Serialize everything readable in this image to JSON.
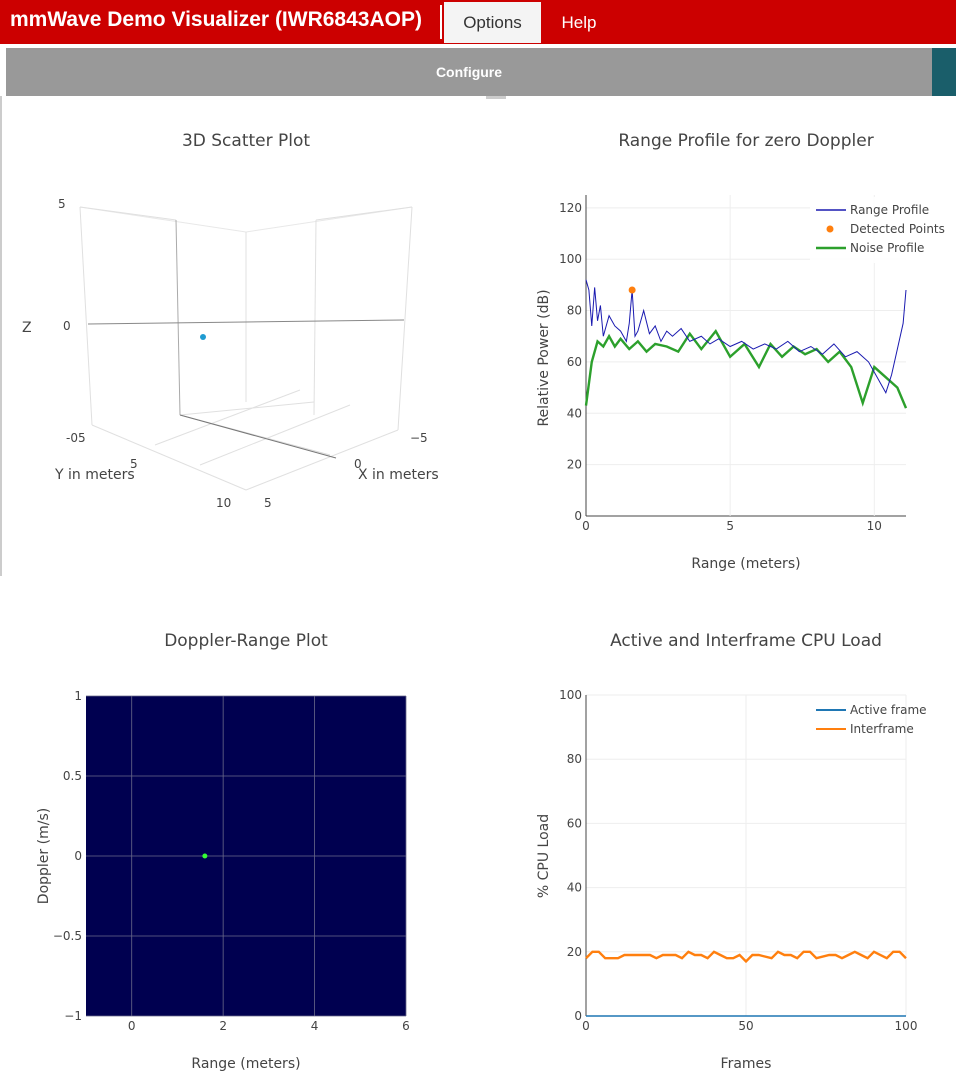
{
  "header": {
    "title": "mmWave Demo Visualizer (IWR6843AOP)",
    "menu": {
      "options": "Options",
      "help": "Help"
    }
  },
  "toolbar": {
    "configure_label": "Configure"
  },
  "colors": {
    "header_red": "#cc0000",
    "configure_gray": "#999999",
    "teal": "#1a5e6a",
    "range_profile": "#1a1ab0",
    "detected_points": "#ff7f0e",
    "noise_profile": "#2ca02c",
    "heatmap_bg": "#000050",
    "active_frame": "#1f77b4",
    "interframe": "#ff7f0e"
  },
  "scatter3d": {
    "title": "3D Scatter Plot",
    "z_label": "Z",
    "z_ticks": [
      "5",
      "0"
    ],
    "y_label": "Y in meters",
    "y_ticks": [
      "-05",
      "5",
      "10"
    ],
    "x_label": "X in meters",
    "x_ticks": [
      "−5",
      "0",
      "5"
    ],
    "point_color": "#1f9bd1"
  },
  "range_profile": {
    "title": "Range Profile for zero Doppler",
    "xlabel": "Range (meters)",
    "ylabel": "Relative Power (dB)",
    "x_ticks": [
      "0",
      "5",
      "10"
    ],
    "y_ticks": [
      "0",
      "20",
      "40",
      "60",
      "80",
      "100",
      "120"
    ],
    "legend": [
      "Range Profile",
      "Detected Points",
      "Noise Profile"
    ]
  },
  "doppler_range": {
    "title": "Doppler-Range Plot",
    "xlabel": "Range (meters)",
    "ylabel": "Doppler (m/s)",
    "x_ticks": [
      "0",
      "2",
      "4",
      "6"
    ],
    "y_ticks": [
      "1",
      "0.5",
      "0",
      "−0.5",
      "−1"
    ]
  },
  "cpu_load": {
    "title": "Active and Interframe  CPU Load",
    "xlabel": "Frames",
    "ylabel": "% CPU Load",
    "x_ticks": [
      "0",
      "50",
      "100"
    ],
    "y_ticks": [
      "0",
      "20",
      "40",
      "60",
      "80",
      "100"
    ],
    "legend": [
      "Active frame",
      "Interframe"
    ]
  },
  "chart_data": [
    {
      "type": "scatter",
      "title": "3D Scatter Plot",
      "xlabel": "X in meters",
      "ylabel": "Y in meters",
      "zlabel": "Z",
      "points": [
        {
          "x": 0,
          "y": 1.6,
          "z": 0
        }
      ]
    },
    {
      "type": "line",
      "title": "Range Profile for zero Doppler",
      "xlabel": "Range (meters)",
      "ylabel": "Relative Power (dB)",
      "xlim": [
        0,
        11.1
      ],
      "ylim": [
        0,
        125
      ],
      "legend_position": "top-right",
      "grid": true,
      "series": [
        {
          "name": "Range Profile",
          "x": [
            0,
            0.1,
            0.2,
            0.3,
            0.4,
            0.5,
            0.6,
            0.8,
            1.0,
            1.2,
            1.4,
            1.5,
            1.6,
            1.7,
            1.8,
            2.0,
            2.2,
            2.4,
            2.6,
            2.8,
            3.0,
            3.3,
            3.6,
            4.0,
            4.3,
            4.6,
            5.0,
            5.4,
            5.8,
            6.2,
            6.6,
            7.0,
            7.4,
            7.8,
            8.2,
            8.6,
            9.0,
            9.4,
            9.8,
            10.2,
            10.4,
            10.6,
            10.8,
            11.0,
            11.1
          ],
          "y": [
            92,
            88,
            74,
            89,
            76,
            82,
            70,
            78,
            74,
            72,
            68,
            75,
            88,
            70,
            72,
            80,
            71,
            74,
            68,
            72,
            70,
            73,
            68,
            70,
            67,
            69,
            66,
            68,
            65,
            67,
            65,
            68,
            64,
            66,
            63,
            67,
            62,
            64,
            60,
            52,
            48,
            55,
            65,
            75,
            88
          ]
        },
        {
          "name": "Detected Points",
          "x": [
            1.6
          ],
          "y": [
            88
          ]
        },
        {
          "name": "Noise Profile",
          "x": [
            0,
            0.2,
            0.4,
            0.6,
            0.8,
            1.0,
            1.2,
            1.5,
            1.8,
            2.1,
            2.4,
            2.8,
            3.2,
            3.6,
            4.0,
            4.5,
            5.0,
            5.5,
            6.0,
            6.4,
            6.8,
            7.2,
            7.6,
            8.0,
            8.4,
            8.8,
            9.2,
            9.6,
            10.0,
            10.4,
            10.8,
            11.1
          ],
          "y": [
            43,
            60,
            68,
            66,
            70,
            66,
            69,
            65,
            68,
            64,
            67,
            66,
            64,
            71,
            65,
            72,
            62,
            67,
            58,
            67,
            62,
            66,
            63,
            65,
            60,
            64,
            58,
            44,
            58,
            54,
            50,
            42
          ]
        }
      ]
    },
    {
      "type": "heatmap",
      "title": "Doppler-Range Plot",
      "xlabel": "Range (meters)",
      "ylabel": "Doppler (m/s)",
      "xlim": [
        -1,
        6
      ],
      "ylim": [
        -1,
        1
      ],
      "points": [
        {
          "x": 1.6,
          "y": 0
        }
      ]
    },
    {
      "type": "line",
      "title": "Active and Interframe  CPU Load",
      "xlabel": "Frames",
      "ylabel": "% CPU Load",
      "xlim": [
        0,
        100
      ],
      "ylim": [
        0,
        100
      ],
      "legend_position": "top-right",
      "grid": true,
      "series": [
        {
          "name": "Active frame",
          "x": [
            0,
            100
          ],
          "y": [
            0,
            0
          ]
        },
        {
          "name": "Interframe",
          "x": [
            0,
            2,
            4,
            6,
            8,
            10,
            12,
            16,
            20,
            22,
            24,
            28,
            30,
            32,
            34,
            36,
            38,
            40,
            42,
            44,
            46,
            48,
            50,
            52,
            54,
            58,
            60,
            62,
            64,
            66,
            68,
            70,
            72,
            76,
            78,
            80,
            82,
            84,
            86,
            88,
            90,
            94,
            96,
            98,
            100
          ],
          "y": [
            18,
            20,
            20,
            18,
            18,
            18,
            19,
            19,
            19,
            18,
            19,
            19,
            18,
            20,
            19,
            19,
            18,
            20,
            19,
            18,
            18,
            19,
            17,
            19,
            19,
            18,
            20,
            19,
            19,
            18,
            20,
            20,
            18,
            19,
            19,
            18,
            19,
            20,
            19,
            18,
            20,
            18,
            20,
            20,
            18
          ]
        }
      ]
    }
  ]
}
